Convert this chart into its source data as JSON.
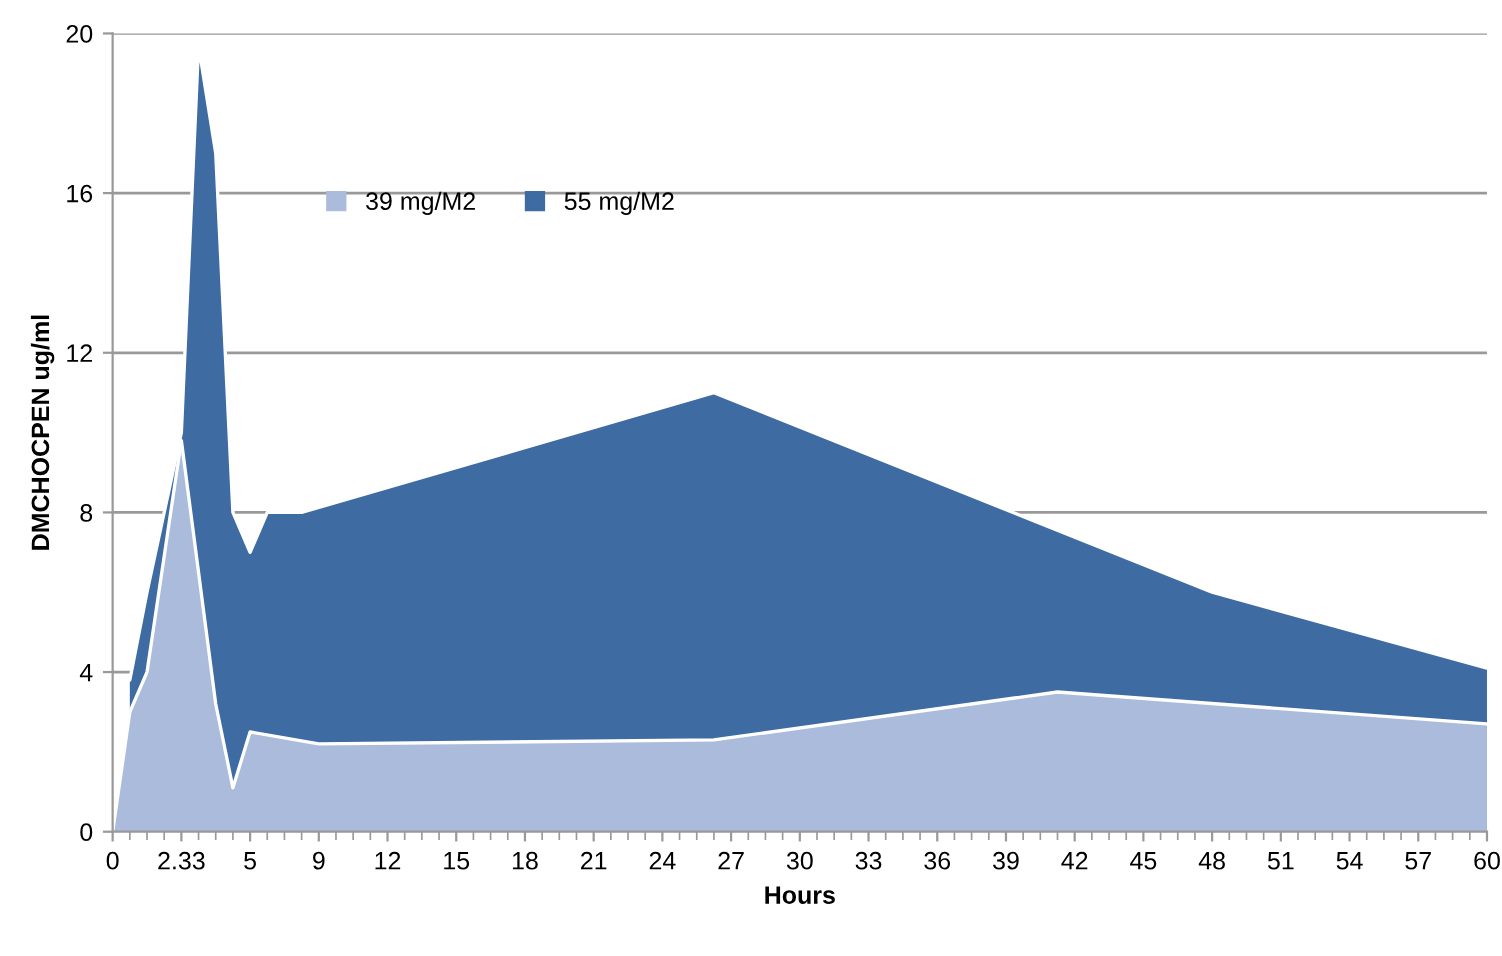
{
  "chart_data": {
    "type": "area",
    "xlabel": "Hours",
    "ylabel": "DMCHOCPEN ug/ml",
    "categories": [
      "0",
      null,
      null,
      null,
      "2.33",
      null,
      null,
      null,
      "5",
      null,
      null,
      null,
      "9",
      null,
      null,
      null,
      "12",
      null,
      null,
      null,
      "15",
      null,
      null,
      null,
      "18",
      null,
      null,
      null,
      "21",
      null,
      null,
      null,
      "24",
      null,
      null,
      null,
      "27",
      null,
      null,
      null,
      "30",
      null,
      null,
      null,
      "33",
      null,
      null,
      null,
      "36",
      null,
      null,
      null,
      "39",
      null,
      null,
      null,
      "42",
      null,
      null,
      null,
      "45",
      null,
      null,
      null,
      "48",
      null,
      null,
      null,
      "51",
      null,
      null,
      null,
      "54",
      null,
      null,
      null,
      "57",
      null,
      null,
      null,
      "60"
    ],
    "series": [
      {
        "name": "55 mg/M2",
        "color": "#3f6ba3",
        "values": [
          null,
          3.8,
          6.0,
          null,
          10,
          19.7,
          17,
          8,
          7,
          8,
          null,
          8,
          null,
          null,
          null,
          null,
          null,
          null,
          null,
          null,
          null,
          null,
          null,
          null,
          null,
          null,
          null,
          null,
          null,
          null,
          null,
          null,
          null,
          null,
          null,
          11,
          null,
          null,
          null,
          null,
          null,
          null,
          null,
          null,
          null,
          null,
          null,
          null,
          null,
          null,
          null,
          null,
          null,
          null,
          null,
          null,
          null,
          null,
          null,
          null,
          null,
          null,
          null,
          null,
          6,
          null,
          null,
          null,
          null,
          null,
          null,
          null,
          null,
          null,
          null,
          null,
          null,
          null,
          null,
          null,
          4.1
        ]
      },
      {
        "name": "39 mg/M2",
        "color": "#aabbdc",
        "values": [
          0,
          3.0,
          4.0,
          null,
          9.8,
          null,
          3.2,
          1.1,
          2.5,
          null,
          null,
          null,
          2.2,
          null,
          null,
          null,
          null,
          null,
          null,
          null,
          null,
          null,
          null,
          null,
          null,
          null,
          null,
          null,
          null,
          null,
          null,
          null,
          null,
          null,
          null,
          2.3,
          null,
          null,
          null,
          null,
          null,
          null,
          null,
          null,
          null,
          null,
          null,
          null,
          null,
          null,
          null,
          null,
          null,
          null,
          null,
          3.5,
          null,
          null,
          null,
          null,
          null,
          null,
          null,
          null,
          null,
          null,
          null,
          null,
          null,
          null,
          null,
          null,
          null,
          null,
          null,
          null,
          null,
          null,
          null,
          null,
          2.7
        ]
      }
    ],
    "ylim": [
      0,
      20
    ],
    "yticks": [
      0,
      4,
      8,
      12,
      16,
      20
    ],
    "grid": "y",
    "legend": "top left"
  }
}
